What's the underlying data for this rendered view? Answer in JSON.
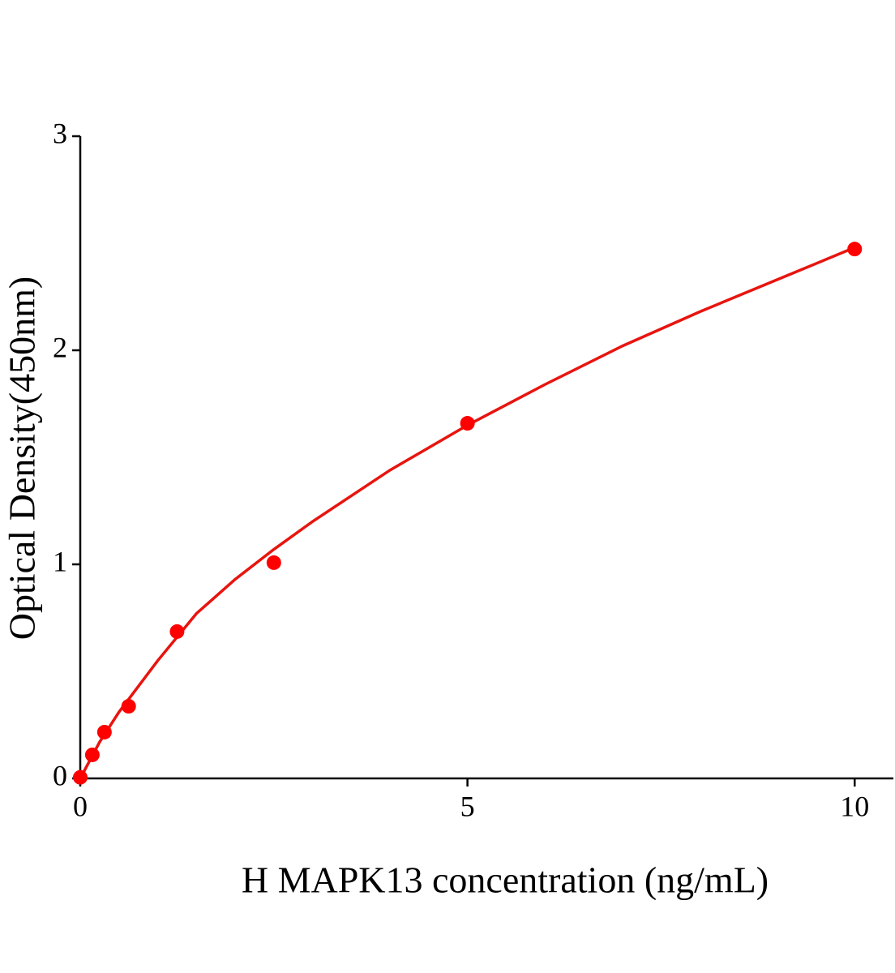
{
  "chart_data": {
    "type": "scatter",
    "x_label": "H MAPK13 concentration (ng/mL)",
    "y_label": "Optical Density(450nm)",
    "xlim": [
      0,
      10.5
    ],
    "ylim": [
      0,
      3
    ],
    "xticks": [
      0,
      5,
      10
    ],
    "yticks": [
      0,
      1,
      2,
      3
    ],
    "series": [
      {
        "type": "scatter",
        "color": "#ff0000",
        "x": [
          0,
          0.156,
          0.3125,
          0.625,
          1.25,
          2.5,
          5,
          10
        ],
        "values": [
          0.005,
          0.11,
          0.216,
          0.337,
          0.686,
          1.008,
          1.659,
          2.473
        ]
      },
      {
        "type": "line",
        "color": "#e8140f",
        "x": [
          0,
          0.25,
          0.5,
          1,
          1.5,
          2,
          2.5,
          3,
          4,
          5,
          6,
          7,
          8,
          9,
          10
        ],
        "values": [
          0,
          0.17,
          0.31,
          0.55,
          0.77,
          0.93,
          1.07,
          1.2,
          1.44,
          1.65,
          1.84,
          2.02,
          2.18,
          2.33,
          2.48
        ]
      }
    ]
  }
}
